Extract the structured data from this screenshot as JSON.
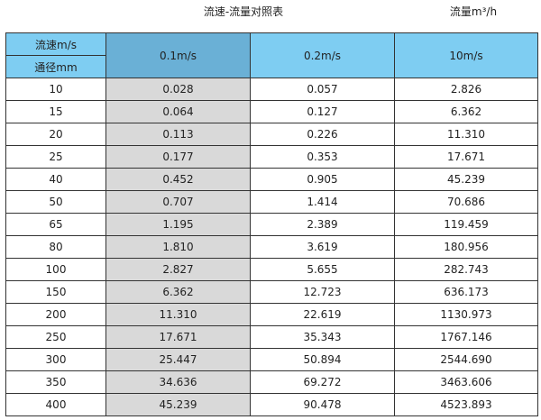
{
  "title": "流速-流量对照表",
  "unit_label": "流量m³/h",
  "colors": {
    "header": "#7ecdf2",
    "header_selected": "#6ab0d6",
    "shaded_column": "#d9d9d9"
  },
  "table": {
    "corner_top": "流速m/s",
    "corner_bottom": "通径mm",
    "columns": [
      "0.1m/s",
      "0.2m/s",
      "10m/s"
    ],
    "rows": [
      [
        "10",
        "0.028",
        "0.057",
        "2.826"
      ],
      [
        "15",
        "0.064",
        "0.127",
        "6.362"
      ],
      [
        "20",
        "0.113",
        "0.226",
        "11.310"
      ],
      [
        "25",
        "0.177",
        "0.353",
        "17.671"
      ],
      [
        "40",
        "0.452",
        "0.905",
        "45.239"
      ],
      [
        "50",
        "0.707",
        "1.414",
        "70.686"
      ],
      [
        "65",
        "1.195",
        "2.389",
        "119.459"
      ],
      [
        "80",
        "1.810",
        "3.619",
        "180.956"
      ],
      [
        "100",
        "2.827",
        "5.655",
        "282.743"
      ],
      [
        "150",
        "6.362",
        "12.723",
        "636.173"
      ],
      [
        "200",
        "11.310",
        "22.619",
        "1130.973"
      ],
      [
        "250",
        "17.671",
        "35.343",
        "1767.146"
      ],
      [
        "300",
        "25.447",
        "50.894",
        "2544.690"
      ],
      [
        "350",
        "34.636",
        "69.272",
        "3463.606"
      ],
      [
        "400",
        "45.239",
        "90.478",
        "4523.893"
      ]
    ]
  }
}
